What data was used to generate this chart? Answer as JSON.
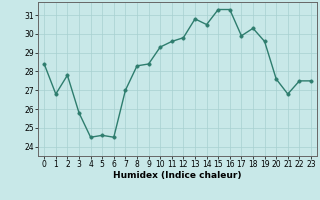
{
  "x": [
    0,
    1,
    2,
    3,
    4,
    5,
    6,
    7,
    8,
    9,
    10,
    11,
    12,
    13,
    14,
    15,
    16,
    17,
    18,
    19,
    20,
    21,
    22,
    23
  ],
  "y": [
    28.4,
    26.8,
    27.8,
    25.8,
    24.5,
    24.6,
    24.5,
    27.0,
    28.3,
    28.4,
    29.3,
    29.6,
    29.8,
    30.8,
    30.5,
    31.3,
    31.3,
    29.9,
    30.3,
    29.6,
    27.6,
    26.8,
    27.5,
    27.5
  ],
  "line_color": "#2e7d6e",
  "marker_color": "#2e7d6e",
  "bg_color": "#c8e8e8",
  "grid_color": "#a8d0d0",
  "xlabel": "Humidex (Indice chaleur)",
  "xlim": [
    -0.5,
    23.5
  ],
  "ylim": [
    23.5,
    31.7
  ],
  "yticks": [
    24,
    25,
    26,
    27,
    28,
    29,
    30,
    31
  ],
  "xticks": [
    0,
    1,
    2,
    3,
    4,
    5,
    6,
    7,
    8,
    9,
    10,
    11,
    12,
    13,
    14,
    15,
    16,
    17,
    18,
    19,
    20,
    21,
    22,
    23
  ],
  "tick_fontsize": 5.5,
  "xlabel_fontsize": 6.5,
  "marker_size": 2.5,
  "line_width": 1.0
}
